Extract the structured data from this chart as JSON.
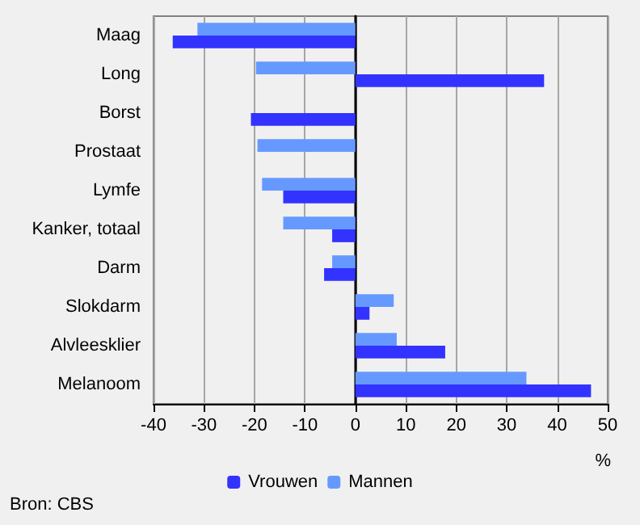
{
  "chart_data": {
    "type": "bar",
    "orientation": "horizontal",
    "categories": [
      "Maag",
      "Long",
      "Borst",
      "Prostaat",
      "Lymfe",
      "Kanker, totaal",
      "Darm",
      "Slokdarm",
      "Alvleesklier",
      "Melanoom"
    ],
    "series": [
      {
        "name": "Vrouwen",
        "color": "#3333ff",
        "values": [
          -36.2,
          37.4,
          -20.7,
          null,
          -14.3,
          -4.6,
          -6.2,
          2.8,
          17.8,
          46.7
        ]
      },
      {
        "name": "Mannen",
        "color": "#6699ff",
        "values": [
          -31.3,
          -19.7,
          null,
          -19.4,
          -18.5,
          -14.3,
          -4.6,
          7.6,
          8.2,
          33.9
        ]
      }
    ],
    "xlim": [
      -40,
      50
    ],
    "xticks": [
      -40,
      -30,
      -20,
      -10,
      0,
      10,
      20,
      30,
      40,
      50
    ],
    "xlabel": "%",
    "grid": "x",
    "legend": "bottom",
    "annotations": [
      "Bron: CBS"
    ]
  }
}
